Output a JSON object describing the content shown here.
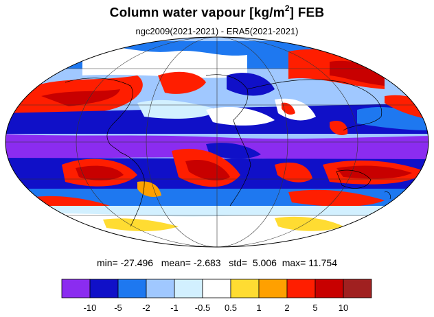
{
  "title": {
    "main": "Column water vapour [kg/m",
    "sup": "2",
    "suffix": "] FEB"
  },
  "subtitle": "ngc2009(2021-2021) - ERA5(2021-2021)",
  "stats": {
    "min_label": "min=",
    "min": "-27.496",
    "mean_label": "mean=",
    "mean": "-2.683",
    "std_label": "std=",
    "std": "5.006",
    "max_label": "max=",
    "max": "11.754"
  },
  "colorbar": {
    "colors": [
      "#8b2cf0",
      "#1010c8",
      "#1e78f0",
      "#a0c8ff",
      "#d2f0ff",
      "#ffffff",
      "#ffdc32",
      "#ffa000",
      "#ff1e00",
      "#c80000",
      "#a02020"
    ],
    "labels": [
      "-10",
      "-5",
      "-2",
      "-1",
      "-0.5",
      "0.5",
      "1",
      "2",
      "5",
      "10"
    ]
  },
  "map": {
    "projection": "Mollweide",
    "graticule": true,
    "coastlines": true
  }
}
